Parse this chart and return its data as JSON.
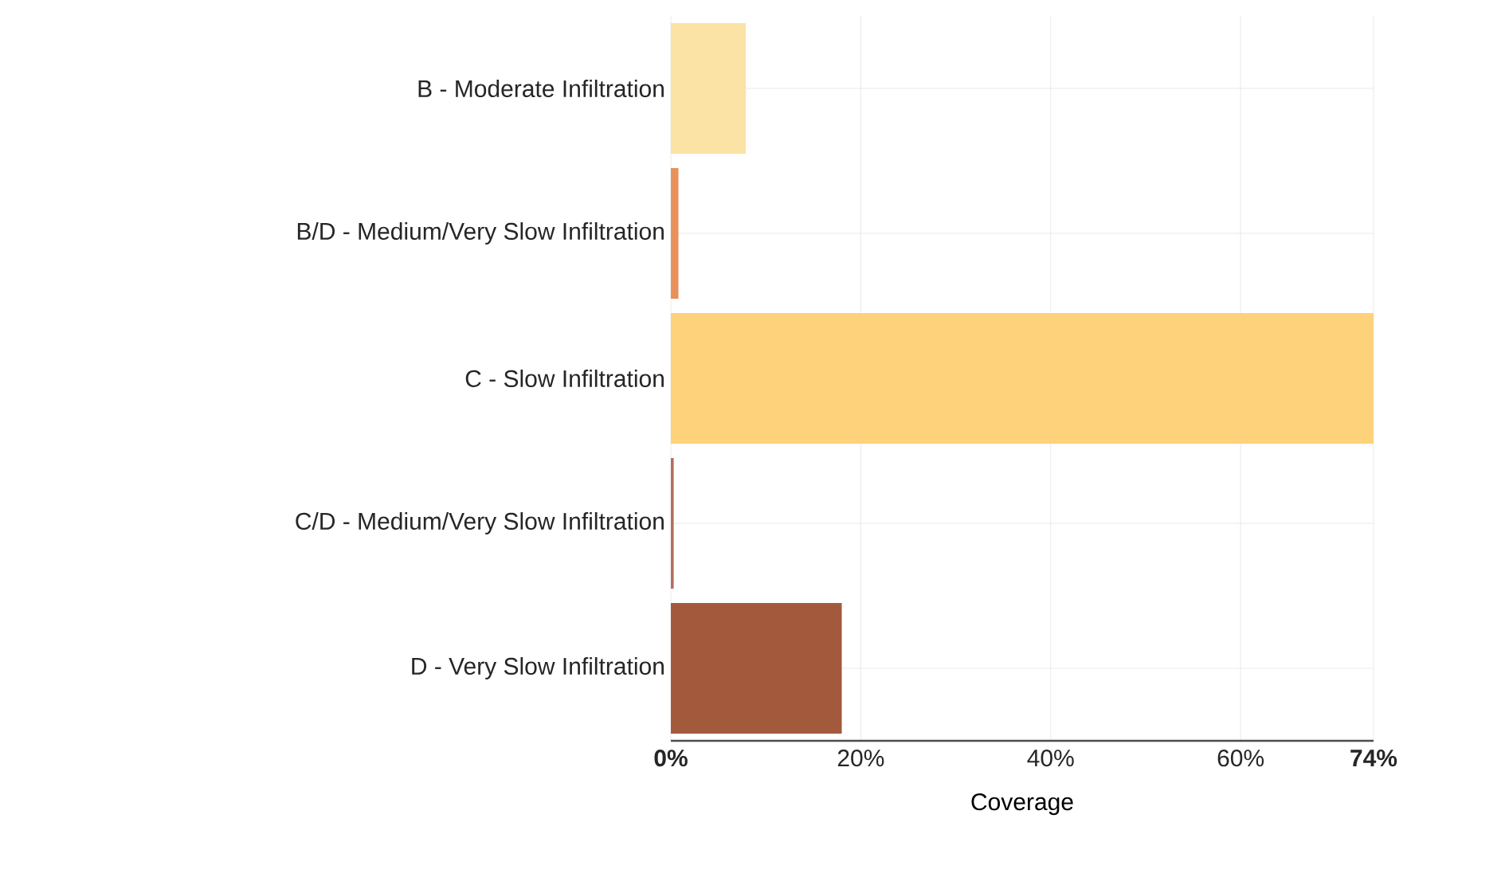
{
  "chart_data": {
    "type": "bar",
    "orientation": "horizontal",
    "xlabel": "Coverage",
    "categories": [
      "B - Moderate Infiltration",
      "B/D - Medium/Very Slow Infiltration",
      "C - Slow Infiltration",
      "C/D - Medium/Very Slow Infiltration",
      "D - Very Slow Infiltration"
    ],
    "values": [
      7.9,
      0.8,
      74,
      0.3,
      18
    ],
    "colors": [
      "#fbe3a6",
      "#e8915a",
      "#fdd27a",
      "#b0705a",
      "#a35a3c"
    ],
    "xlim": [
      0,
      74
    ],
    "xticks": [
      {
        "value": 0,
        "label": "0%"
      },
      {
        "value": 20,
        "label": "20%"
      },
      {
        "value": 40,
        "label": "40%"
      },
      {
        "value": 60,
        "label": "60%"
      },
      {
        "value": 74,
        "label": "74%"
      }
    ],
    "grid": true
  }
}
